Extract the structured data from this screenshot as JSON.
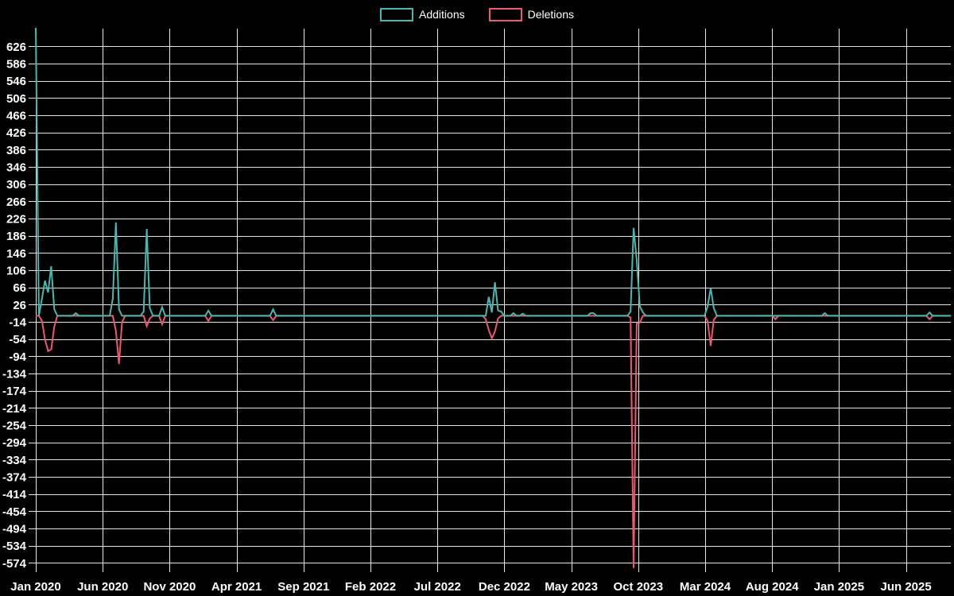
{
  "legend": {
    "items": [
      {
        "label": "Additions",
        "color": "#46b8b2"
      },
      {
        "label": "Deletions",
        "color": "#ef5670"
      }
    ]
  },
  "chart_data": {
    "type": "line",
    "title": "",
    "xlabel": "",
    "ylabel": "",
    "background_color": "#000000",
    "grid_color": "#e6e6e6",
    "text_color": "#ffffff",
    "grid": true,
    "legend_position": "top-center",
    "x_unit": "week",
    "x_tick_labels": [
      "Jan 2020",
      "Jun 2020",
      "Nov 2020",
      "Apr 2021",
      "Sep 2021",
      "Feb 2022",
      "Jul 2022",
      "Dec 2022",
      "May 2023",
      "Oct 2023",
      "Mar 2024",
      "Aug 2024",
      "Jan 2025",
      "Jun 2025"
    ],
    "x_tick_interval_months": 5,
    "y_ticks": [
      626,
      586,
      546,
      506,
      466,
      426,
      386,
      346,
      306,
      266,
      226,
      186,
      146,
      106,
      66,
      26,
      -14,
      -54,
      -94,
      -134,
      -174,
      -214,
      -254,
      -294,
      -334,
      -374,
      -414,
      -454,
      -494,
      -534,
      -574
    ],
    "ylim": [
      -599,
      667
    ],
    "weeks_total": 298,
    "series": [
      {
        "name": "Additions",
        "color": "#46b8b2",
        "default_value": 0,
        "points_sparse": {
          "0": 669,
          "2": 40,
          "3": 82,
          "4": 54,
          "5": 115,
          "6": 15,
          "13": 6,
          "25": 40,
          "26": 217,
          "27": 15,
          "35": 10,
          "36": 202,
          "37": 18,
          "41": 20,
          "56": 12,
          "77": 15,
          "147": 44,
          "148": 8,
          "149": 78,
          "150": 12,
          "151": 10,
          "155": 6,
          "158": 5,
          "180": 6,
          "181": 6,
          "193": 10,
          "194": 204,
          "195": 130,
          "196": 22,
          "197": 8,
          "218": 22,
          "219": 64,
          "220": 18,
          "256": 6,
          "290": 8
        }
      },
      {
        "name": "Deletions",
        "color": "#ef5670",
        "default_value": 0,
        "points_sparse": {
          "2": -12,
          "3": -55,
          "4": -82,
          "5": -78,
          "6": -25,
          "26": -35,
          "27": -112,
          "28": -15,
          "36": -24,
          "37": -6,
          "41": -20,
          "56": -12,
          "77": -10,
          "146": -8,
          "147": -33,
          "148": -52,
          "149": -36,
          "150": -6,
          "193": -4,
          "194": -586,
          "195": -18,
          "196": -16,
          "218": -12,
          "219": -70,
          "220": -10,
          "240": -8,
          "290": -8
        }
      }
    ]
  }
}
